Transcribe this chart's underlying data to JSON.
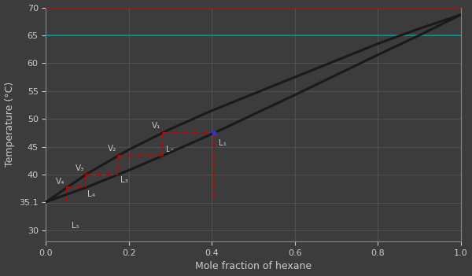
{
  "title": "",
  "xlabel": "Mole fraction of hexane",
  "ylabel": "Temperature (°C)",
  "xlim": [
    0.0,
    1.0
  ],
  "ylim": [
    28,
    70
  ],
  "xticks": [
    0.0,
    0.2,
    0.4,
    0.6,
    0.8,
    1.0
  ],
  "yticks": [
    30,
    35.1,
    40,
    45,
    50,
    55,
    60,
    65,
    70
  ],
  "ytick_labels": [
    "30",
    "35.1",
    "40",
    "45",
    "50",
    "55",
    "60",
    "65",
    "70"
  ],
  "bg_color": "#3c3c3c",
  "plot_bg_color": "#3c3c3c",
  "bubble_x": [
    0.0,
    0.1,
    0.2,
    0.3,
    0.4,
    0.5,
    0.6,
    0.7,
    0.8,
    0.9,
    1.0
  ],
  "bubble_T": [
    35.1,
    37.8,
    40.8,
    44.0,
    47.3,
    50.8,
    54.3,
    57.9,
    61.5,
    65.0,
    68.7
  ],
  "dew_x": [
    0.0,
    0.1,
    0.2,
    0.3,
    0.4,
    0.5,
    0.6,
    0.7,
    0.8,
    0.9,
    1.0
  ],
  "dew_T": [
    35.1,
    40.2,
    44.5,
    48.2,
    51.5,
    54.5,
    57.5,
    60.5,
    63.5,
    66.2,
    68.7
  ],
  "curve_color": "#1a1a1a",
  "curve_lw": 2.2,
  "hline_70_color": "#cc0000",
  "hline_70_lw": 1.5,
  "hline_65_color": "#009999",
  "hline_65_lw": 1.2,
  "grid_color": "#555555",
  "grid_lw": 0.6,
  "red_dashed_color": "#cc0000",
  "construction_lw": 1.3,
  "T1": 47.5,
  "blue_dot_color": "#3333cc",
  "label_fontsize": 7.5,
  "axis_label_fontsize": 9,
  "tick_fontsize": 8,
  "tick_color": "#cccccc",
  "label_color": "#cccccc",
  "spine_color": "#888888"
}
